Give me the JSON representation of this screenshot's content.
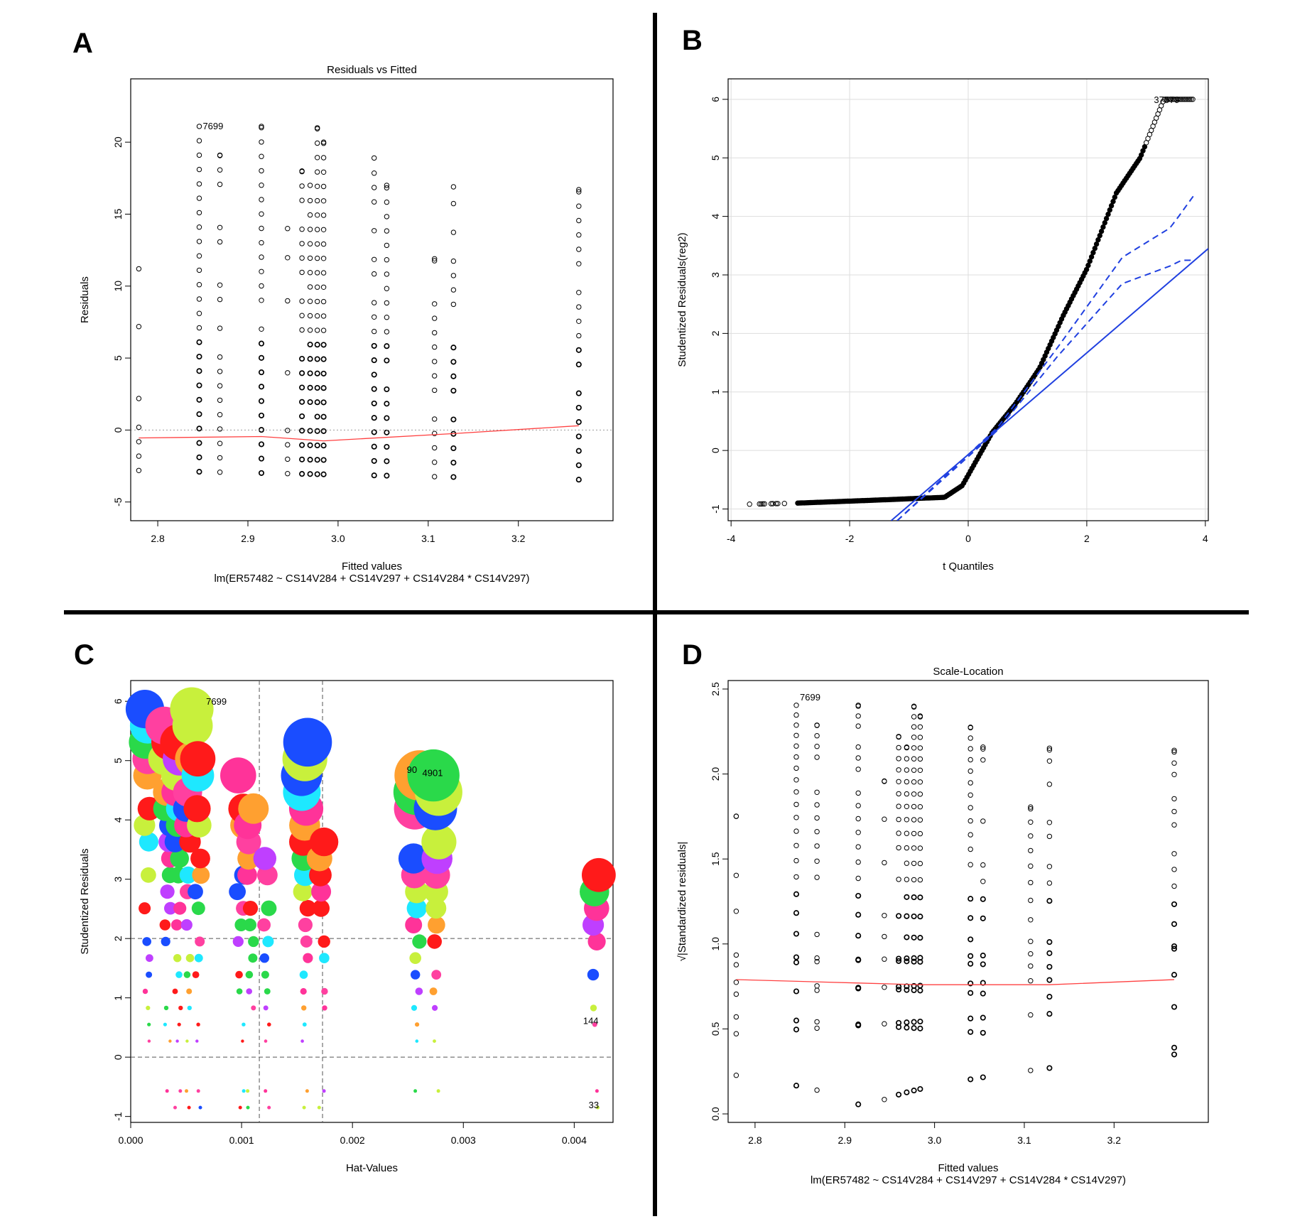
{
  "figure": {
    "divider_color": "#000000"
  },
  "chart_data": [
    {
      "panel": "A",
      "type": "scatter",
      "title": "Residuals vs Fitted",
      "xlabel": "Fitted values",
      "xlabel2": "lm(ER57482 ~ CS14V284 + CS14V297 + CS14V284 * CS14V297)",
      "ylabel": "Residuals",
      "xlim": [
        2.77,
        3.305
      ],
      "ylim": [
        -6.3,
        24.4
      ],
      "xticks": [
        "2.8",
        "2.9",
        "3.0",
        "3.1",
        "3.2"
      ],
      "yticks": [
        "-5",
        "0",
        "5",
        "10",
        "15",
        "20"
      ],
      "x_levels": [
        2.779,
        2.846,
        2.869,
        2.915,
        2.944,
        2.96,
        2.969,
        2.977,
        2.984,
        3.04,
        3.054,
        3.107,
        3.128,
        3.267
      ],
      "residual_min": -3.3,
      "residual_max": 21.1,
      "smooth_color": "#ff4040",
      "smooth": {
        "x": [
          2.779,
          2.915,
          2.984,
          3.128,
          3.267
        ],
        "y": [
          -0.55,
          -0.45,
          -0.75,
          -0.25,
          0.3
        ]
      },
      "reference_line_y": 0,
      "point_labels": [
        {
          "text": "7699",
          "x": 2.846,
          "y": 21.1
        }
      ]
    },
    {
      "panel": "B",
      "type": "scatter",
      "title": "",
      "xlabel": "t Quantiles",
      "ylabel": "Studentized Residuals(reg2)",
      "xlim": [
        -4.05,
        4.05
      ],
      "ylim": [
        -1.2,
        6.35
      ],
      "xticks": [
        "-4",
        "-2",
        "0",
        "2",
        "4"
      ],
      "yticks": [
        "-1",
        "0",
        "1",
        "2",
        "3",
        "4",
        "5",
        "6"
      ],
      "grid": true,
      "line_color": "#2040e0",
      "qq_points": {
        "x": [
          -3.8,
          -2.9,
          -1.6,
          -0.4,
          -0.1,
          0.4,
          0.8,
          1.2,
          1.6,
          2.0,
          2.5,
          2.9,
          3.3,
          3.8
        ],
        "y": [
          -0.92,
          -0.9,
          -0.85,
          -0.8,
          -0.6,
          0.3,
          0.8,
          1.4,
          2.3,
          3.1,
          4.4,
          5.0,
          6.0,
          6.0
        ]
      },
      "fit_line": {
        "x": [
          -1.3,
          4.05
        ],
        "y": [
          -1.2,
          3.45
        ]
      },
      "envelope_upper": {
        "x": [
          -1.2,
          0.5,
          1.5,
          2.6,
          3.4,
          3.55,
          3.8
        ],
        "y": [
          -1.2,
          0.4,
          1.75,
          3.3,
          3.8,
          4.0,
          4.35
        ]
      },
      "envelope_lower": {
        "x": [
          -1.2,
          0.5,
          1.5,
          2.6,
          3.4,
          3.6,
          3.8
        ],
        "y": [
          -1.2,
          0.35,
          1.6,
          2.85,
          3.15,
          3.25,
          3.25
        ]
      },
      "point_labels": [
        {
          "text": "37579",
          "x": 3.3,
          "y": 6.0
        }
      ]
    },
    {
      "panel": "C",
      "type": "scatter",
      "title": "",
      "xlabel": "Hat-Values",
      "ylabel": "Studentized Residuals",
      "xlim": [
        0.0,
        0.00435
      ],
      "ylim": [
        -1.1,
        6.35
      ],
      "xticks": [
        "0.000",
        "0.001",
        "0.002",
        "0.003",
        "0.004"
      ],
      "yticks": [
        "-1",
        "0",
        "1",
        "2",
        "3",
        "4",
        "5",
        "6"
      ],
      "hlines": [
        0,
        2
      ],
      "vlines": [
        0.00116,
        0.00173
      ],
      "palette": [
        "#ff1a1a",
        "#ff3399",
        "#ffa030",
        "#1a4dff",
        "#2ad94a",
        "#bf3fff",
        "#1ee8ff",
        "#c8f03c",
        "#ff40a0"
      ],
      "columns": [
        0.00015,
        0.00033,
        0.00043,
        0.00053,
        0.00061,
        0.00099,
        0.00108,
        0.00123,
        0.00157,
        0.00172,
        0.00258,
        0.00276,
        0.0042
      ],
      "point_labels": [
        {
          "text": "7699",
          "x": 0.00068,
          "y": 6.0
        },
        {
          "text": "90",
          "x": 0.00249,
          "y": 4.85
        },
        {
          "text": "4901",
          "x": 0.00263,
          "y": 4.8
        },
        {
          "text": "144",
          "x": 0.00408,
          "y": 0.62
        },
        {
          "text": "33",
          "x": 0.00413,
          "y": -0.8
        }
      ]
    },
    {
      "panel": "D",
      "type": "scatter",
      "title": "Scale-Location",
      "xlabel": "Fitted values",
      "xlabel2": "lm(ER57482 ~ CS14V284 + CS14V297 + CS14V284 * CS14V297)",
      "ylabel": "√|Standardized residuals|",
      "xlim": [
        2.77,
        3.305
      ],
      "ylim": [
        -0.05,
        2.55
      ],
      "xticks": [
        "2.8",
        "2.9",
        "3.0",
        "3.1",
        "3.2"
      ],
      "yticks": [
        "0.0",
        "0.5",
        "1.0",
        "1.5",
        "2.0",
        "2.5"
      ],
      "x_levels": [
        2.779,
        2.846,
        2.869,
        2.915,
        2.944,
        2.96,
        2.969,
        2.977,
        2.984,
        3.04,
        3.054,
        3.107,
        3.128,
        3.267
      ],
      "smooth_color": "#ff4040",
      "smooth": {
        "x": [
          2.779,
          2.915,
          2.984,
          3.128,
          3.267
        ],
        "y": [
          0.79,
          0.77,
          0.76,
          0.76,
          0.79
        ]
      },
      "point_labels": [
        {
          "text": "7699",
          "x": 2.846,
          "y": 2.45
        }
      ]
    }
  ]
}
